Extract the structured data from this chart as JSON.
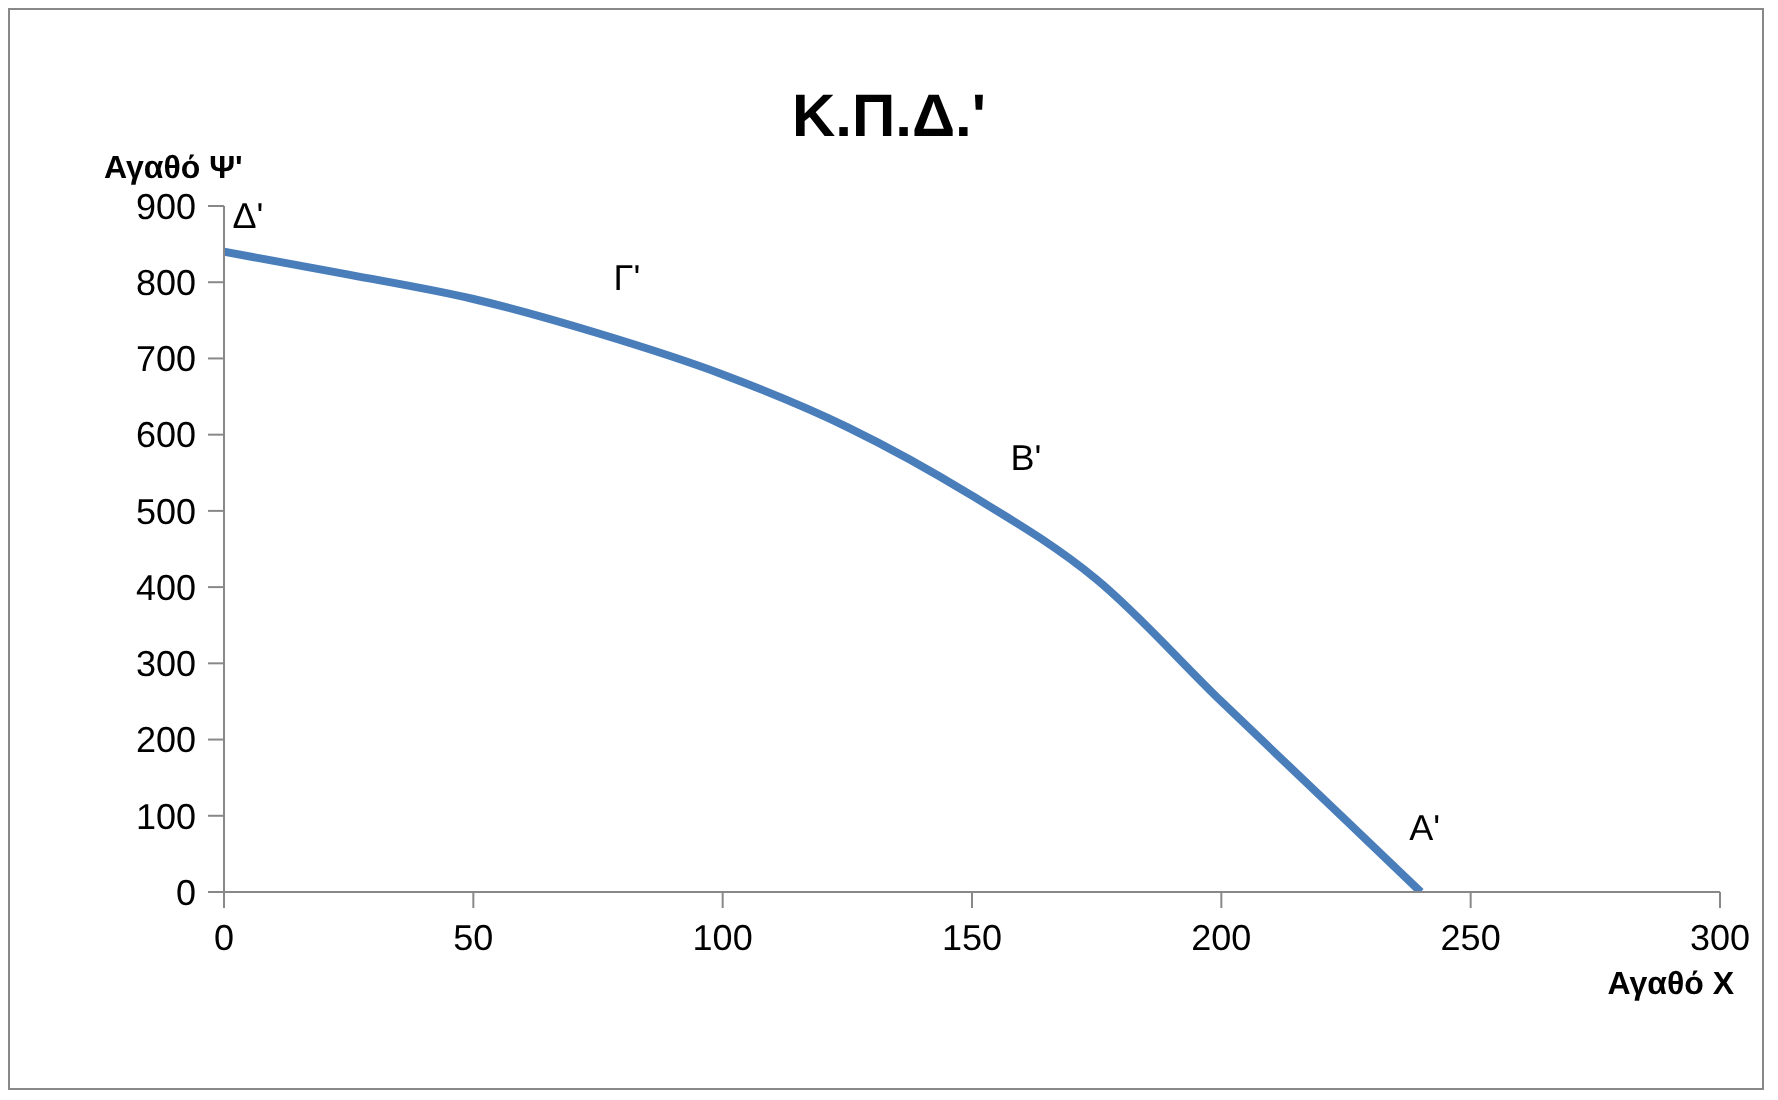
{
  "chart_data": {
    "type": "line",
    "title": "Κ.Π.Δ.'",
    "xlabel": "Αγαθό Χ",
    "ylabel": "Αγαθό Ψ'",
    "x": [
      0,
      25,
      50,
      75,
      100,
      125,
      150,
      175,
      200,
      225,
      240
    ],
    "series": [
      {
        "color": "#4a7ebb",
        "values": [
          840,
          810,
          778,
          733,
          679,
          610,
          520,
          410,
          250,
          94,
          0
        ]
      }
    ],
    "xlim": [
      0,
      300
    ],
    "xticks": [
      0,
      50,
      100,
      150,
      200,
      250,
      300
    ],
    "ylim": [
      0,
      900
    ],
    "yticks": [
      0,
      100,
      200,
      300,
      400,
      500,
      600,
      700,
      800,
      900
    ],
    "grid": false,
    "legend": false,
    "marker": "none",
    "line_style": "solid",
    "annotations": [
      {
        "text": "Δ'",
        "x": 0,
        "y": 840
      },
      {
        "text": "Γ'",
        "x": 80,
        "y": 722
      },
      {
        "text": "Β'",
        "x": 160,
        "y": 485
      },
      {
        "text": "Α'",
        "x": 240,
        "y": 0
      }
    ]
  }
}
